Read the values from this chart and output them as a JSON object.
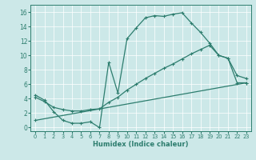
{
  "xlabel": "Humidex (Indice chaleur)",
  "xlim": [
    -0.5,
    23.5
  ],
  "ylim": [
    -0.5,
    17
  ],
  "xticks": [
    0,
    1,
    2,
    3,
    4,
    5,
    6,
    7,
    8,
    9,
    10,
    11,
    12,
    13,
    14,
    15,
    16,
    17,
    18,
    19,
    20,
    21,
    22,
    23
  ],
  "yticks": [
    0,
    2,
    4,
    6,
    8,
    10,
    12,
    14,
    16
  ],
  "bg_color": "#cce8e8",
  "line_color": "#2d7d6e",
  "line1_x": [
    0,
    1,
    2,
    3,
    4,
    5,
    6,
    7,
    8,
    9,
    10,
    11,
    12,
    13,
    14,
    15,
    16,
    17,
    18,
    19,
    20,
    21,
    22,
    23
  ],
  "line1_y": [
    4.5,
    3.8,
    2.2,
    1.0,
    0.6,
    0.6,
    0.8,
    0.0,
    9.0,
    4.8,
    12.3,
    13.8,
    15.2,
    15.5,
    15.4,
    15.7,
    15.9,
    14.5,
    13.2,
    11.7,
    10.0,
    9.6,
    6.2,
    6.2
  ],
  "line2_x": [
    0,
    1,
    2,
    3,
    4,
    5,
    6,
    7,
    8,
    9,
    10,
    11,
    12,
    13,
    14,
    15,
    16,
    17,
    18,
    19,
    20,
    21,
    22,
    23
  ],
  "line2_y": [
    4.2,
    3.6,
    2.8,
    2.5,
    2.3,
    2.3,
    2.5,
    2.6,
    3.5,
    4.2,
    5.2,
    6.0,
    6.8,
    7.5,
    8.2,
    8.8,
    9.5,
    10.2,
    10.8,
    11.4,
    10.0,
    9.6,
    7.2,
    6.8
  ],
  "line3_x": [
    0,
    23
  ],
  "line3_y": [
    1.0,
    6.2
  ]
}
